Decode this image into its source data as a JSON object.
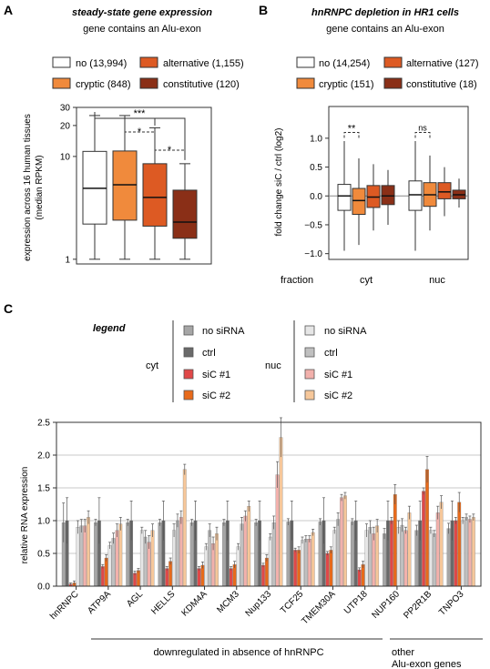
{
  "panels": {
    "A": {
      "letter": "A",
      "title": "steady-state gene expression",
      "subtitle": "gene contains an Alu-exon",
      "legend": [
        {
          "label": "no (13,994)",
          "color": "#ffffff"
        },
        {
          "label": "alternative (1,155)",
          "color": "#dd5a23"
        },
        {
          "label": "cryptic (848)",
          "color": "#f08a3c"
        },
        {
          "label": "constitutive (120)",
          "color": "#8a2f17"
        }
      ]
    },
    "B": {
      "letter": "B",
      "title": "hnRNPC depletion in HR1 cells",
      "subtitle": "gene contains an Alu-exon",
      "legend": [
        {
          "label": "no (14,254)",
          "color": "#ffffff"
        },
        {
          "label": "alternative (127)",
          "color": "#dd5a23"
        },
        {
          "label": "cryptic (151)",
          "color": "#f08a3c"
        },
        {
          "label": "constitutive (18)",
          "color": "#8a2f17"
        }
      ],
      "fraction_label": "fraction"
    },
    "C": {
      "letter": "C",
      "legend_title": "legend",
      "cyt_label": "cyt",
      "nuc_label": "nuc",
      "cyt_items": [
        {
          "label": "no siRNA",
          "color": "#a6a6a6"
        },
        {
          "label": "ctrl",
          "color": "#6a6a6a"
        },
        {
          "label": "siC #1",
          "color": "#e04848"
        },
        {
          "label": "siC #2",
          "color": "#e86a1a"
        }
      ],
      "nuc_items": [
        {
          "label": "no siRNA",
          "color": "#e6e6e6"
        },
        {
          "label": "ctrl",
          "color": "#c0c0c0"
        },
        {
          "label": "siC #1",
          "color": "#f2b1ac"
        },
        {
          "label": "siC #2",
          "color": "#f6c79a"
        }
      ],
      "group_label_down": "downregulated in absence of hnRNPC",
      "group_label_other": [
        "other",
        "Alu-exon genes"
      ]
    }
  },
  "chart_data": [
    {
      "type": "boxplot",
      "panel": "A",
      "ylabel": [
        "expression across 16 human tissues",
        "(median RPKM)"
      ],
      "yscale": "log",
      "ylim": [
        0.9,
        30
      ],
      "yticks": [
        1,
        10,
        20,
        30
      ],
      "categories": [
        "no",
        "cryptic",
        "alternative",
        "constitutive"
      ],
      "colors": [
        "#ffffff",
        "#f08a3c",
        "#dd5a23",
        "#8a2f17"
      ],
      "boxes": [
        {
          "whisker_low": 1.0,
          "q1": 2.2,
          "median": 4.9,
          "q3": 11.2,
          "whisker_high": 25
        },
        {
          "whisker_low": 1.0,
          "q1": 2.4,
          "median": 5.3,
          "q3": 11.3,
          "whisker_high": 25
        },
        {
          "whisker_low": 1.0,
          "q1": 2.1,
          "median": 4.0,
          "q3": 8.5,
          "whisker_high": 19
        },
        {
          "whisker_low": 1.0,
          "q1": 1.6,
          "median": 2.3,
          "q3": 4.7,
          "whisker_high": 8.5
        }
      ],
      "annotations": [
        "***",
        "*",
        "*"
      ]
    },
    {
      "type": "boxplot",
      "panel": "B",
      "ylabel": [
        "fold change siC / ctrl (log2)"
      ],
      "ylim": [
        -1.1,
        1.55
      ],
      "yticks": [
        -1.0,
        -0.5,
        0.0,
        0.5,
        1.0
      ],
      "ytick_labels": [
        "−1.0",
        "−0.5",
        "0.0",
        "0.5",
        "1.0"
      ],
      "groups": [
        "cyt",
        "nuc"
      ],
      "categories": [
        "no",
        "cryptic",
        "alternative",
        "constitutive"
      ],
      "colors": [
        "#ffffff",
        "#f08a3c",
        "#dd5a23",
        "#8a2f17"
      ],
      "boxes": [
        [
          {
            "whisker_low": -0.95,
            "q1": -0.25,
            "median": 0.0,
            "q3": 0.2,
            "whisker_high": 0.95
          },
          {
            "whisker_low": -0.85,
            "q1": -0.32,
            "median": -0.08,
            "q3": 0.13,
            "whisker_high": 0.65
          },
          {
            "whisker_low": -0.6,
            "q1": -0.2,
            "median": -0.02,
            "q3": 0.18,
            "whisker_high": 0.55
          },
          {
            "whisker_low": -0.5,
            "q1": -0.15,
            "median": 0.0,
            "q3": 0.18,
            "whisker_high": 0.45
          }
        ],
        [
          {
            "whisker_low": -0.95,
            "q1": -0.25,
            "median": 0.02,
            "q3": 0.26,
            "whisker_high": 0.95
          },
          {
            "whisker_low": -0.6,
            "q1": -0.18,
            "median": 0.02,
            "q3": 0.23,
            "whisker_high": 0.7
          },
          {
            "whisker_low": -0.35,
            "q1": -0.05,
            "median": 0.07,
            "q3": 0.23,
            "whisker_high": 0.5
          },
          {
            "whisker_low": -0.2,
            "q1": -0.05,
            "median": 0.02,
            "q3": 0.1,
            "whisker_high": 0.3
          }
        ]
      ],
      "annotations": [
        "**",
        "ns"
      ]
    },
    {
      "type": "bar",
      "panel": "C",
      "ylabel": "relative RNA expression",
      "ylim": [
        0,
        2.5
      ],
      "yticks": [
        0.0,
        0.5,
        1.0,
        1.5,
        2.0,
        2.5
      ],
      "categories": [
        "hnRNPC",
        "ATP9A",
        "AGL",
        "HELLS",
        "KDM4A",
        "MCM3",
        "Nup133",
        "TCF25",
        "TMEM30A",
        "UTP18",
        "NUP160",
        "PP2R1B",
        "TNPO3"
      ],
      "series": [
        {
          "name": "cyt no siRNA",
          "color": "#a6a6a6",
          "values": [
            0.97,
            0.97,
            0.97,
            0.97,
            0.97,
            0.97,
            0.97,
            0.98,
            0.98,
            0.98,
            0.8,
            0.85,
            0.88
          ]
        },
        {
          "name": "cyt ctrl",
          "color": "#6a6a6a",
          "values": [
            1.0,
            1.0,
            1.0,
            1.0,
            1.0,
            1.0,
            1.0,
            1.0,
            1.0,
            1.0,
            1.0,
            1.0,
            1.0
          ]
        },
        {
          "name": "cyt siC #1",
          "color": "#e04848",
          "values": [
            0.03,
            0.3,
            0.2,
            0.27,
            0.27,
            0.27,
            0.32,
            0.55,
            0.5,
            0.25,
            1.0,
            1.45,
            1.0
          ]
        },
        {
          "name": "cyt siC #2",
          "color": "#e86a1a",
          "values": [
            0.05,
            0.43,
            0.24,
            0.38,
            0.32,
            0.33,
            0.43,
            0.55,
            0.55,
            0.33,
            1.4,
            1.78,
            1.28
          ]
        },
        {
          "name": "nuc no siRNA",
          "color": "#e6e6e6",
          "values": [
            0.9,
            0.62,
            0.85,
            0.85,
            0.6,
            0.6,
            0.75,
            0.7,
            0.85,
            0.85,
            0.9,
            0.85,
            1.0
          ]
        },
        {
          "name": "nuc ctrl",
          "color": "#c0c0c0",
          "values": [
            0.92,
            0.73,
            0.75,
            1.0,
            0.85,
            0.95,
            0.97,
            0.72,
            1.02,
            0.9,
            0.93,
            0.8,
            1.05
          ]
        },
        {
          "name": "nuc siC #1",
          "color": "#f2b1ac",
          "values": [
            0.92,
            0.85,
            0.67,
            1.05,
            0.65,
            1.07,
            1.7,
            0.72,
            1.35,
            0.8,
            0.85,
            1.12,
            1.02
          ]
        },
        {
          "name": "nuc siC #2",
          "color": "#f6c79a",
          "values": [
            1.05,
            0.95,
            0.85,
            1.78,
            0.8,
            1.22,
            2.27,
            0.82,
            1.38,
            0.92,
            1.12,
            1.28,
            1.05
          ]
        }
      ],
      "errors": [
        [
          0.3,
          0.05,
          0.05,
          0.05,
          0.05,
          0.05,
          0.05,
          0.05,
          0.05,
          0.05,
          0.08,
          0.08,
          0.08
        ],
        [
          0.35,
          0.35,
          0.3,
          0.3,
          0.3,
          0.3,
          0.3,
          0.3,
          0.35,
          0.3,
          0.3,
          0.3,
          0.3
        ],
        [
          0.02,
          0.03,
          0.03,
          0.03,
          0.03,
          0.03,
          0.03,
          0.03,
          0.03,
          0.03,
          0.05,
          0.05,
          0.05
        ],
        [
          0.03,
          0.05,
          0.03,
          0.05,
          0.05,
          0.05,
          0.05,
          0.05,
          0.05,
          0.05,
          0.15,
          0.2,
          0.15
        ],
        [
          0.1,
          0.05,
          0.05,
          0.1,
          0.05,
          0.05,
          0.05,
          0.05,
          0.05,
          0.1,
          0.1,
          0.05,
          0.05
        ],
        [
          0.1,
          0.08,
          0.1,
          0.1,
          0.1,
          0.1,
          0.1,
          0.05,
          0.1,
          0.1,
          0.1,
          0.05,
          0.05
        ],
        [
          0.1,
          0.1,
          0.1,
          0.1,
          0.1,
          0.08,
          0.2,
          0.05,
          0.05,
          0.1,
          0.05,
          0.1,
          0.05
        ],
        [
          0.1,
          0.1,
          0.1,
          0.08,
          0.1,
          0.08,
          0.3,
          0.05,
          0.05,
          0.1,
          0.1,
          0.1,
          0.05
        ]
      ],
      "grid": true
    }
  ]
}
